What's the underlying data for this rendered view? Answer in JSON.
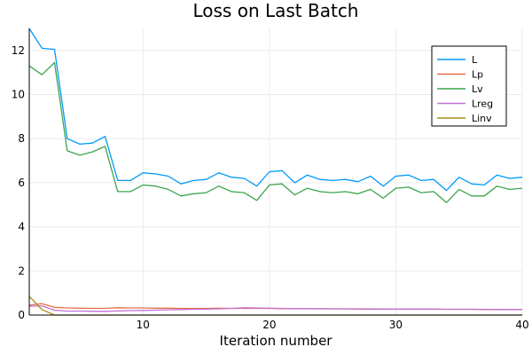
{
  "chart_data": {
    "type": "line",
    "title": "Loss on Last Batch",
    "xlabel": "Iteration number",
    "ylabel": "",
    "xlim": [
      1,
      40
    ],
    "ylim": [
      0,
      13
    ],
    "xticks": [
      10,
      20,
      30,
      40
    ],
    "yticks": [
      0,
      2,
      4,
      6,
      8,
      10,
      12
    ],
    "grid": true,
    "legend_position": "top-right",
    "x": [
      1,
      2,
      3,
      4,
      5,
      6,
      7,
      8,
      9,
      10,
      11,
      12,
      13,
      14,
      15,
      16,
      17,
      18,
      19,
      20,
      21,
      22,
      23,
      24,
      25,
      26,
      27,
      28,
      29,
      30,
      31,
      32,
      33,
      34,
      35,
      36,
      37,
      38,
      39,
      40
    ],
    "series": [
      {
        "name": "L",
        "color": "#009AFA",
        "values": [
          13.0,
          12.1,
          12.05,
          8.0,
          7.75,
          7.8,
          8.1,
          6.1,
          6.1,
          6.45,
          6.4,
          6.3,
          5.95,
          6.1,
          6.15,
          6.45,
          6.25,
          6.2,
          5.85,
          6.5,
          6.55,
          6.0,
          6.35,
          6.15,
          6.1,
          6.15,
          6.05,
          6.3,
          5.85,
          6.3,
          6.35,
          6.1,
          6.15,
          5.65,
          6.25,
          5.95,
          5.9,
          6.35,
          6.2,
          6.25
        ]
      },
      {
        "name": "Lp",
        "color": "#E36F47",
        "values": [
          0.45,
          0.52,
          0.35,
          0.32,
          0.31,
          0.3,
          0.3,
          0.33,
          0.32,
          0.32,
          0.31,
          0.31,
          0.3,
          0.3,
          0.3,
          0.31,
          0.3,
          0.31,
          0.3,
          0.3,
          0.29,
          0.29,
          0.29,
          0.28,
          0.28,
          0.28,
          0.28,
          0.28,
          0.27,
          0.27,
          0.27,
          0.27,
          0.27,
          0.26,
          0.26,
          0.26,
          0.25,
          0.26,
          0.25,
          0.25
        ]
      },
      {
        "name": "Lv",
        "color": "#3EA44E",
        "values": [
          11.3,
          10.9,
          11.45,
          7.45,
          7.25,
          7.4,
          7.65,
          5.6,
          5.6,
          5.9,
          5.85,
          5.7,
          5.4,
          5.5,
          5.55,
          5.85,
          5.6,
          5.55,
          5.2,
          5.9,
          5.95,
          5.45,
          5.75,
          5.6,
          5.55,
          5.6,
          5.5,
          5.7,
          5.3,
          5.75,
          5.8,
          5.55,
          5.6,
          5.1,
          5.7,
          5.4,
          5.4,
          5.85,
          5.7,
          5.75
        ]
      },
      {
        "name": "Lreg",
        "color": "#C371D2",
        "values": [
          0.4,
          0.42,
          0.22,
          0.18,
          0.18,
          0.17,
          0.17,
          0.19,
          0.2,
          0.21,
          0.22,
          0.24,
          0.25,
          0.26,
          0.27,
          0.28,
          0.3,
          0.33,
          0.32,
          0.31,
          0.3,
          0.29,
          0.29,
          0.29,
          0.28,
          0.28,
          0.27,
          0.27,
          0.27,
          0.27,
          0.27,
          0.27,
          0.27,
          0.26,
          0.26,
          0.26,
          0.26,
          0.25,
          0.25,
          0.25
        ]
      },
      {
        "name": "Linv",
        "color": "#AC8D18",
        "values": [
          0.85,
          0.25,
          0.0,
          0.0,
          0.0,
          0.0,
          0.0,
          0.0,
          0.0,
          0.0,
          0.0,
          0.0,
          0.0,
          0.0,
          0.0,
          0.0,
          0.0,
          0.0,
          0.0,
          0.0,
          0.0,
          0.0,
          0.0,
          0.0,
          0.0,
          0.0,
          0.0,
          0.0,
          0.0,
          0.0,
          0.0,
          0.0,
          0.0,
          0.0,
          0.0,
          0.0,
          0.0,
          0.0,
          0.0,
          0.0
        ]
      }
    ]
  }
}
